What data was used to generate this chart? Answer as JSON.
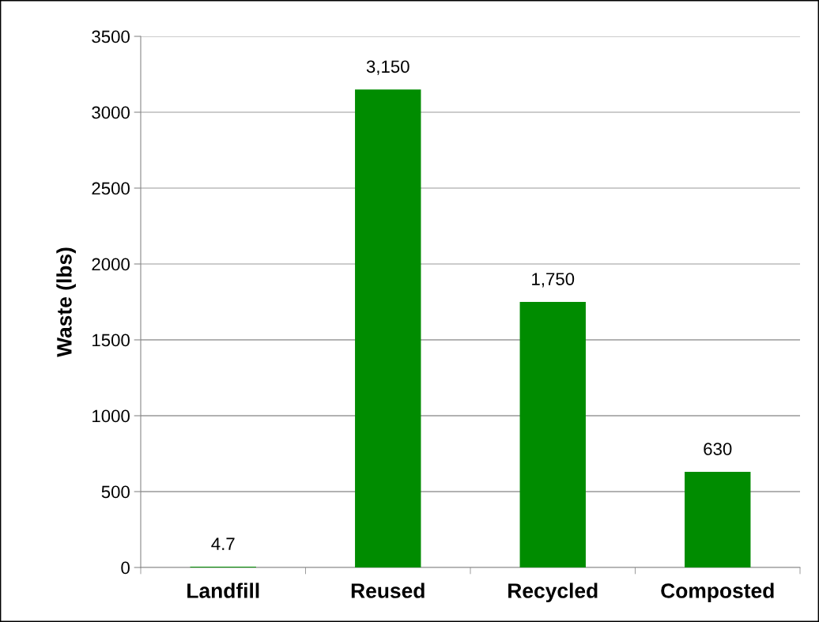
{
  "chart_data": {
    "type": "bar",
    "ylabel": "Waste (lbs)",
    "categories": [
      "Landfill",
      "Reused",
      "Recycled",
      "Composted"
    ],
    "values": [
      4.7,
      3150,
      1750,
      630
    ],
    "value_labels": [
      "4.7",
      "3,150",
      "1,750",
      "630"
    ],
    "color": "#008c00",
    "ylim": [
      0,
      3500
    ],
    "yticks": [
      0,
      500,
      1000,
      1500,
      2000,
      2500,
      3000,
      3500
    ],
    "grid": "y",
    "legend": false
  }
}
